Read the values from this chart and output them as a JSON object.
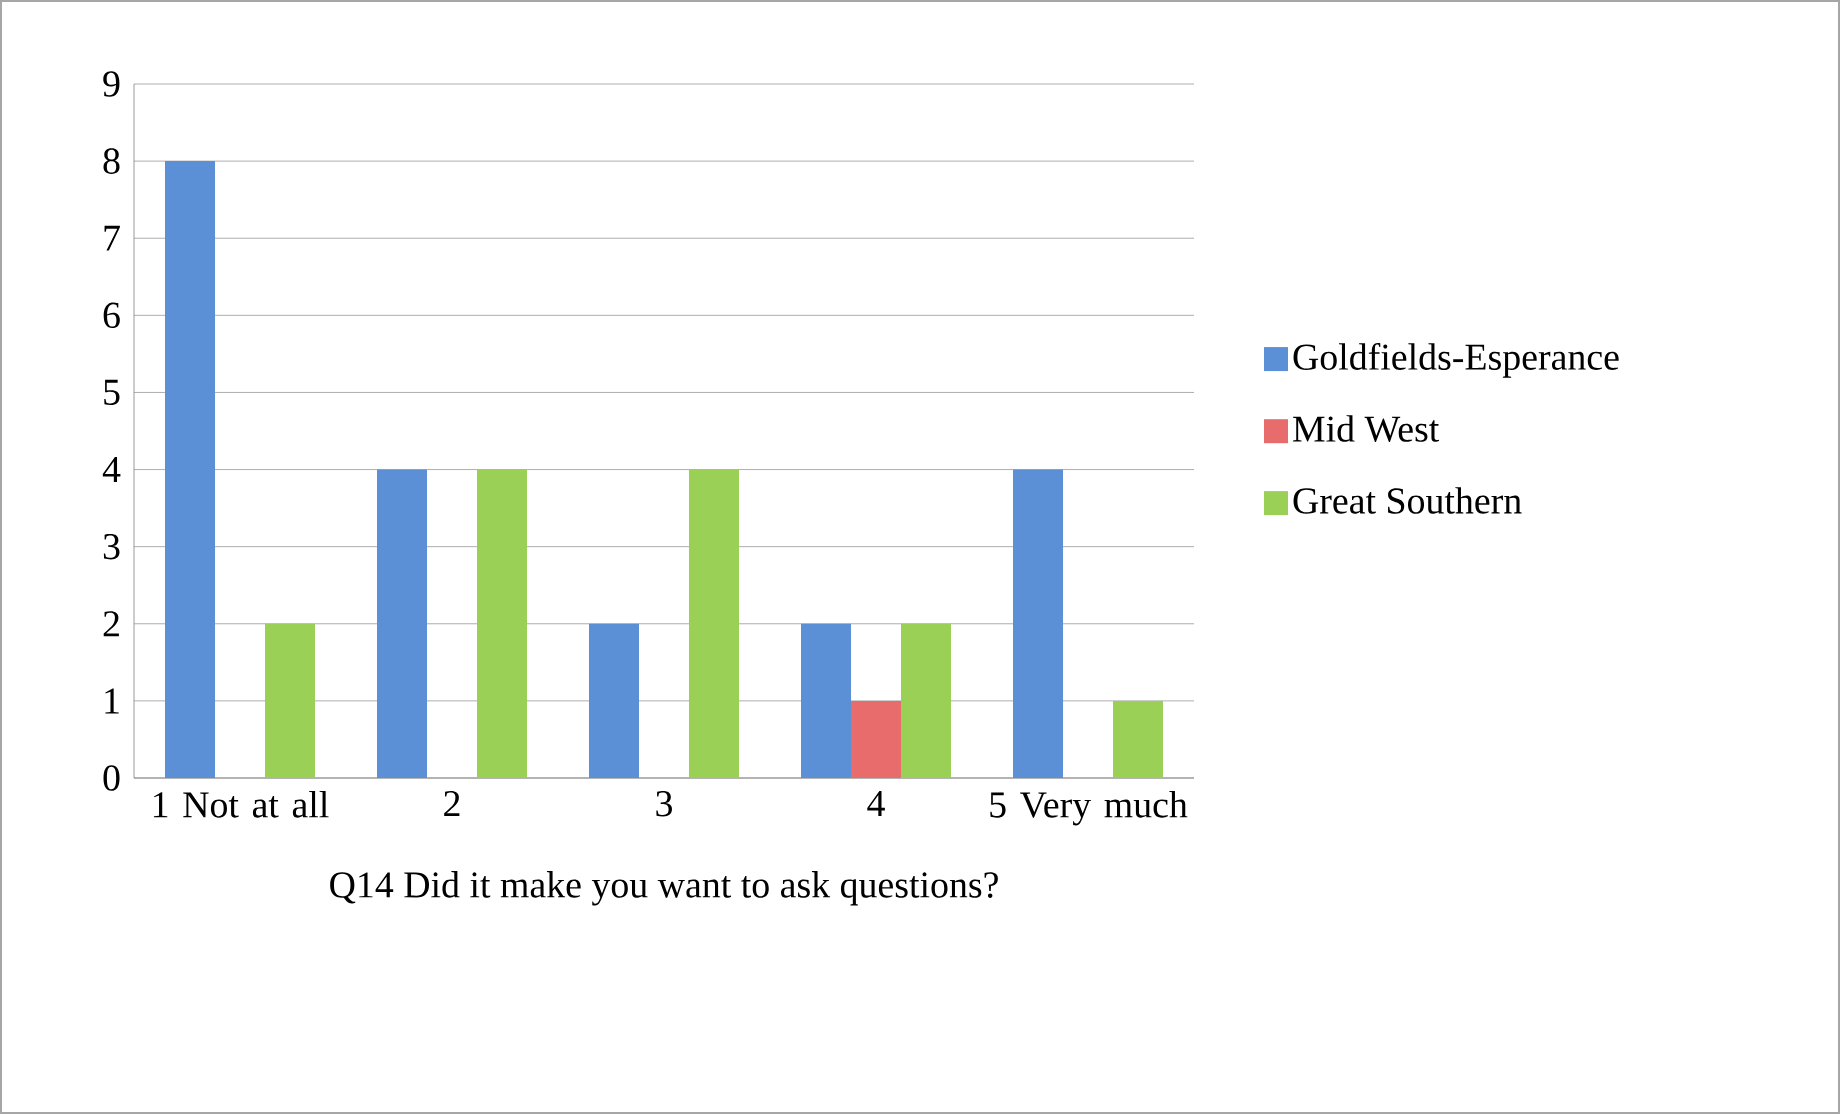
{
  "chart_data": {
    "type": "bar",
    "xlabel": "Q14 Did it make you want to ask questions?",
    "categories": [
      "1 Not at all",
      "2",
      "3",
      "4",
      "5 Very much"
    ],
    "series": [
      {
        "name": "Goldfields-Esperance",
        "color": "#5b8fd6",
        "values": [
          8,
          4,
          2,
          2,
          4
        ]
      },
      {
        "name": "Mid West",
        "color": "#e96c6c",
        "values": [
          0,
          0,
          0,
          1,
          0
        ]
      },
      {
        "name": "Great Southern",
        "color": "#9bd056",
        "values": [
          2,
          4,
          4,
          2,
          1
        ]
      }
    ],
    "ylim": [
      0,
      9
    ],
    "yticks": [
      0,
      1,
      2,
      3,
      4,
      5,
      6,
      7,
      8,
      9
    ],
    "grid": "y",
    "legend": "right"
  }
}
